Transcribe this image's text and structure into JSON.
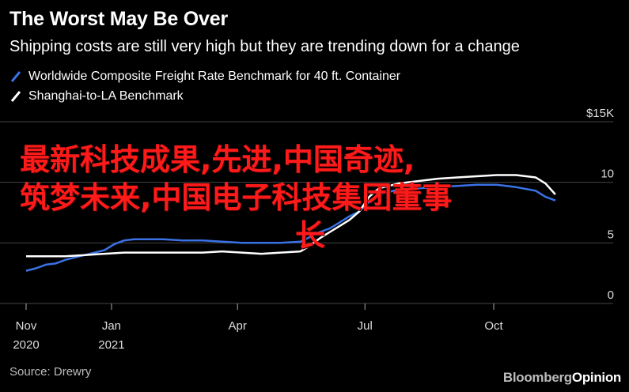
{
  "header": {
    "title": "The Worst May Be Over",
    "subtitle": "Shipping costs are still very high but they are trending down for a change"
  },
  "legend": [
    {
      "label": "Worldwide Composite Freight Rate Benchmark for 40 ft. Container",
      "color": "#3a72e6"
    },
    {
      "label": "Shanghai-to-LA Benchmark",
      "color": "#ffffff"
    }
  ],
  "footer": {
    "source": "Source: Drewry",
    "brand": "Bloomberg",
    "brand_suffix": "Opinion"
  },
  "overlay": {
    "line1": "最新科技成果,先进,中国奇迹,",
    "line2": "筑梦未来,中国电子科技集团董事",
    "line3": "长"
  },
  "chart_data": {
    "type": "line",
    "ylim": [
      0,
      15
    ],
    "yticks": [
      0,
      5,
      10,
      15
    ],
    "ytick_labels": [
      "0",
      "5",
      "10",
      "$15K"
    ],
    "xlim": [
      "2020-11-01",
      "2021-12-01"
    ],
    "xticks": [
      {
        "date": "2020-11-01",
        "label": "Nov",
        "sublabel": "2020"
      },
      {
        "date": "2021-01-01",
        "label": "Jan",
        "sublabel": "2021"
      },
      {
        "date": "2021-04-01",
        "label": "Apr",
        "sublabel": ""
      },
      {
        "date": "2021-07-01",
        "label": "Jul",
        "sublabel": ""
      },
      {
        "date": "2021-10-01",
        "label": "Oct",
        "sublabel": ""
      }
    ],
    "grid": true,
    "series": [
      {
        "name": "Worldwide Composite Freight Rate Benchmark for 40 ft. Container",
        "color": "#3a72e6",
        "points": [
          [
            "2020-11-01",
            2.7
          ],
          [
            "2020-11-08",
            2.9
          ],
          [
            "2020-11-15",
            3.2
          ],
          [
            "2020-11-22",
            3.3
          ],
          [
            "2020-11-29",
            3.6
          ],
          [
            "2020-12-06",
            3.8
          ],
          [
            "2020-12-13",
            4.0
          ],
          [
            "2020-12-20",
            4.2
          ],
          [
            "2020-12-27",
            4.4
          ],
          [
            "2021-01-03",
            4.9
          ],
          [
            "2021-01-10",
            5.2
          ],
          [
            "2021-01-17",
            5.3
          ],
          [
            "2021-01-24",
            5.3
          ],
          [
            "2021-02-07",
            5.3
          ],
          [
            "2021-02-21",
            5.2
          ],
          [
            "2021-03-07",
            5.2
          ],
          [
            "2021-03-21",
            5.1
          ],
          [
            "2021-04-04",
            5.0
          ],
          [
            "2021-04-18",
            5.0
          ],
          [
            "2021-05-02",
            5.0
          ],
          [
            "2021-05-16",
            5.1
          ],
          [
            "2021-05-23",
            5.5
          ],
          [
            "2021-05-30",
            5.9
          ],
          [
            "2021-06-06",
            6.2
          ],
          [
            "2021-06-13",
            6.7
          ],
          [
            "2021-06-20",
            7.2
          ],
          [
            "2021-06-27",
            7.6
          ],
          [
            "2021-07-04",
            8.4
          ],
          [
            "2021-07-11",
            9.0
          ],
          [
            "2021-07-25",
            9.4
          ],
          [
            "2021-08-08",
            9.5
          ],
          [
            "2021-08-22",
            9.6
          ],
          [
            "2021-09-05",
            9.7
          ],
          [
            "2021-09-19",
            9.8
          ],
          [
            "2021-10-03",
            9.8
          ],
          [
            "2021-10-17",
            9.6
          ],
          [
            "2021-10-31",
            9.3
          ],
          [
            "2021-11-07",
            8.8
          ],
          [
            "2021-11-14",
            8.5
          ]
        ]
      },
      {
        "name": "Shanghai-to-LA Benchmark",
        "color": "#ffffff",
        "points": [
          [
            "2020-11-01",
            3.9
          ],
          [
            "2020-11-15",
            3.9
          ],
          [
            "2020-11-29",
            3.9
          ],
          [
            "2020-12-13",
            4.0
          ],
          [
            "2020-12-27",
            4.1
          ],
          [
            "2021-01-10",
            4.2
          ],
          [
            "2021-01-24",
            4.2
          ],
          [
            "2021-02-07",
            4.2
          ],
          [
            "2021-02-21",
            4.2
          ],
          [
            "2021-03-07",
            4.2
          ],
          [
            "2021-03-21",
            4.3
          ],
          [
            "2021-04-04",
            4.2
          ],
          [
            "2021-04-18",
            4.1
          ],
          [
            "2021-05-02",
            4.2
          ],
          [
            "2021-05-16",
            4.3
          ],
          [
            "2021-05-23",
            4.8
          ],
          [
            "2021-05-30",
            5.4
          ],
          [
            "2021-06-06",
            5.9
          ],
          [
            "2021-06-13",
            6.4
          ],
          [
            "2021-06-20",
            6.9
          ],
          [
            "2021-06-27",
            7.6
          ],
          [
            "2021-07-04",
            8.8
          ],
          [
            "2021-07-11",
            9.5
          ],
          [
            "2021-07-25",
            9.9
          ],
          [
            "2021-08-08",
            10.1
          ],
          [
            "2021-08-22",
            10.3
          ],
          [
            "2021-09-05",
            10.4
          ],
          [
            "2021-09-19",
            10.5
          ],
          [
            "2021-10-03",
            10.6
          ],
          [
            "2021-10-17",
            10.6
          ],
          [
            "2021-10-31",
            10.4
          ],
          [
            "2021-11-07",
            9.9
          ],
          [
            "2021-11-14",
            9.0
          ]
        ]
      }
    ]
  }
}
